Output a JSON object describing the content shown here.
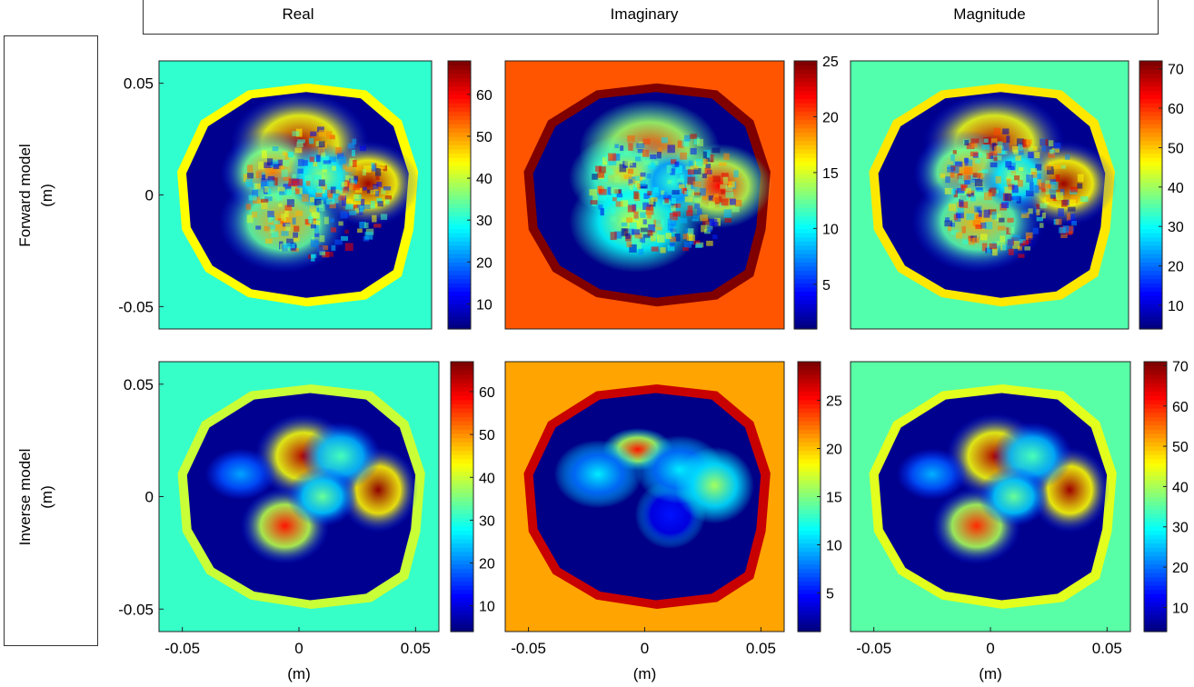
{
  "column_titles": [
    "Real",
    "Imaginary",
    "Magnitude"
  ],
  "row_labels": [
    {
      "line1": "Forward model",
      "line2": "(m)"
    },
    {
      "line1": "Inverse model",
      "line2": "(m)"
    }
  ],
  "chart_data": [
    {
      "type": "heatmap",
      "id": "forward-real",
      "column": "Real",
      "row": "Forward model",
      "xlim": [
        -0.06,
        0.06
      ],
      "ylim": [
        -0.06,
        0.06
      ],
      "x_ticks": [],
      "y_ticks": [
        -0.05,
        0,
        0.05
      ],
      "y_tick_labels": [
        "-0.05",
        "0",
        "0.05"
      ],
      "xlabel": "",
      "ylabel": "(m)",
      "colorbar": {
        "min": 4,
        "max": 68,
        "ticks": [
          10,
          20,
          30,
          40,
          50,
          60
        ]
      },
      "background_value": 31,
      "ring_value": 44,
      "interior_value": 5,
      "blobs": [
        {
          "x": 0.002,
          "y": 0.023,
          "rx": 0.016,
          "ry": 0.012,
          "value": 65
        },
        {
          "x": 0.032,
          "y": 0.005,
          "rx": 0.012,
          "ry": 0.01,
          "value": 66
        },
        {
          "x": -0.01,
          "y": 0.01,
          "rx": 0.012,
          "ry": 0.01,
          "value": 52
        },
        {
          "x": -0.005,
          "y": -0.012,
          "rx": 0.015,
          "ry": 0.012,
          "value": 50
        },
        {
          "x": 0.012,
          "y": 0.008,
          "rx": 0.008,
          "ry": 0.008,
          "value": 38
        }
      ]
    },
    {
      "type": "heatmap",
      "id": "forward-imaginary",
      "column": "Imaginary",
      "row": "Forward model",
      "xlim": [
        -0.06,
        0.06
      ],
      "ylim": [
        -0.06,
        0.06
      ],
      "x_ticks": [],
      "y_ticks": [],
      "xlabel": "",
      "ylabel": "",
      "colorbar": {
        "min": 1,
        "max": 25,
        "ticks": [
          5,
          10,
          15,
          20,
          25
        ]
      },
      "background_value": 20,
      "ring_value": 25,
      "interior_value": 1.2,
      "blobs": [
        {
          "x": 0.002,
          "y": 0.02,
          "rx": 0.016,
          "ry": 0.012,
          "value": 21
        },
        {
          "x": 0.032,
          "y": 0.004,
          "rx": 0.012,
          "ry": 0.01,
          "value": 22
        },
        {
          "x": -0.008,
          "y": 0.008,
          "rx": 0.013,
          "ry": 0.01,
          "value": 17
        },
        {
          "x": -0.004,
          "y": -0.012,
          "rx": 0.015,
          "ry": 0.012,
          "value": 15
        },
        {
          "x": 0.012,
          "y": 0.006,
          "rx": 0.008,
          "ry": 0.008,
          "value": 11
        }
      ]
    },
    {
      "type": "heatmap",
      "id": "forward-magnitude",
      "column": "Magnitude",
      "row": "Forward model",
      "xlim": [
        -0.06,
        0.06
      ],
      "ylim": [
        -0.06,
        0.06
      ],
      "x_ticks": [],
      "y_ticks": [],
      "xlabel": "",
      "ylabel": "",
      "colorbar": {
        "min": 4,
        "max": 72,
        "ticks": [
          10,
          20,
          30,
          40,
          50,
          60,
          70
        ]
      },
      "background_value": 35,
      "ring_value": 48,
      "interior_value": 5,
      "blobs": [
        {
          "x": 0.002,
          "y": 0.023,
          "rx": 0.016,
          "ry": 0.012,
          "value": 68
        },
        {
          "x": 0.032,
          "y": 0.005,
          "rx": 0.012,
          "ry": 0.01,
          "value": 70
        },
        {
          "x": -0.01,
          "y": 0.01,
          "rx": 0.012,
          "ry": 0.01,
          "value": 54
        },
        {
          "x": -0.005,
          "y": -0.012,
          "rx": 0.015,
          "ry": 0.012,
          "value": 52
        },
        {
          "x": 0.012,
          "y": 0.008,
          "rx": 0.008,
          "ry": 0.008,
          "value": 40
        }
      ]
    },
    {
      "type": "heatmap",
      "id": "inverse-real",
      "column": "Real",
      "row": "Inverse model",
      "xlim": [
        -0.06,
        0.06
      ],
      "ylim": [
        -0.06,
        0.06
      ],
      "x_ticks": [
        -0.05,
        0,
        0.05
      ],
      "x_tick_labels": [
        "-0.05",
        "0",
        "0.05"
      ],
      "y_ticks": [
        -0.05,
        0,
        0.05
      ],
      "y_tick_labels": [
        "-0.05",
        "0",
        "0.05"
      ],
      "xlabel": "(m)",
      "ylabel": "(m)",
      "colorbar": {
        "min": 4,
        "max": 67,
        "ticks": [
          10,
          20,
          30,
          40,
          50,
          60
        ]
      },
      "background_value": 31,
      "ring_value": 40,
      "interior_value": 5,
      "blobs": [
        {
          "x": 0.002,
          "y": 0.018,
          "rx": 0.011,
          "ry": 0.01,
          "value": 64
        },
        {
          "x": 0.034,
          "y": 0.003,
          "rx": 0.009,
          "ry": 0.01,
          "value": 66
        },
        {
          "x": -0.006,
          "y": -0.013,
          "rx": 0.01,
          "ry": 0.009,
          "value": 58
        },
        {
          "x": 0.018,
          "y": 0.018,
          "rx": 0.009,
          "ry": 0.008,
          "value": 32
        },
        {
          "x": 0.01,
          "y": 0.0,
          "rx": 0.008,
          "ry": 0.007,
          "value": 34
        },
        {
          "x": -0.025,
          "y": 0.01,
          "rx": 0.008,
          "ry": 0.006,
          "value": 22
        }
      ]
    },
    {
      "type": "heatmap",
      "id": "inverse-imaginary",
      "column": "Imaginary",
      "row": "Inverse model",
      "xlim": [
        -0.06,
        0.06
      ],
      "ylim": [
        -0.06,
        0.06
      ],
      "x_ticks": [
        -0.05,
        0,
        0.05
      ],
      "x_tick_labels": [
        "-0.05",
        "0",
        "0.05"
      ],
      "y_ticks": [],
      "xlabel": "(m)",
      "ylabel": "",
      "colorbar": {
        "min": 1,
        "max": 29,
        "ticks": [
          5,
          10,
          15,
          20,
          25
        ]
      },
      "background_value": 21,
      "ring_value": 27,
      "interior_value": 1.2,
      "blobs": [
        {
          "x": -0.003,
          "y": 0.021,
          "rx": 0.008,
          "ry": 0.005,
          "value": 25
        },
        {
          "x": 0.011,
          "y": -0.008,
          "rx": 0.008,
          "ry": 0.008,
          "value": 5
        },
        {
          "x": 0.015,
          "y": 0.012,
          "rx": 0.01,
          "ry": 0.008,
          "value": 11
        },
        {
          "x": -0.02,
          "y": 0.01,
          "rx": 0.01,
          "ry": 0.008,
          "value": 11
        },
        {
          "x": 0.03,
          "y": 0.005,
          "rx": 0.009,
          "ry": 0.009,
          "value": 16
        }
      ]
    },
    {
      "type": "heatmap",
      "id": "inverse-magnitude",
      "column": "Magnitude",
      "row": "Inverse model",
      "xlim": [
        -0.06,
        0.06
      ],
      "ylim": [
        -0.06,
        0.06
      ],
      "x_ticks": [
        -0.05,
        0,
        0.05
      ],
      "x_tick_labels": [
        "-0.05",
        "0",
        "0.05"
      ],
      "y_ticks": [],
      "xlabel": "(m)",
      "ylabel": "",
      "colorbar": {
        "min": 4,
        "max": 71,
        "ticks": [
          10,
          20,
          30,
          40,
          50,
          60,
          70
        ]
      },
      "background_value": 35,
      "ring_value": 44,
      "interior_value": 5,
      "blobs": [
        {
          "x": 0.002,
          "y": 0.018,
          "rx": 0.011,
          "ry": 0.01,
          "value": 68
        },
        {
          "x": 0.034,
          "y": 0.003,
          "rx": 0.009,
          "ry": 0.01,
          "value": 69
        },
        {
          "x": -0.006,
          "y": -0.013,
          "rx": 0.01,
          "ry": 0.009,
          "value": 60
        },
        {
          "x": 0.018,
          "y": 0.018,
          "rx": 0.009,
          "ry": 0.008,
          "value": 34
        },
        {
          "x": 0.01,
          "y": 0.0,
          "rx": 0.008,
          "ry": 0.007,
          "value": 36
        },
        {
          "x": -0.025,
          "y": 0.01,
          "rx": 0.008,
          "ry": 0.006,
          "value": 24
        }
      ]
    }
  ]
}
